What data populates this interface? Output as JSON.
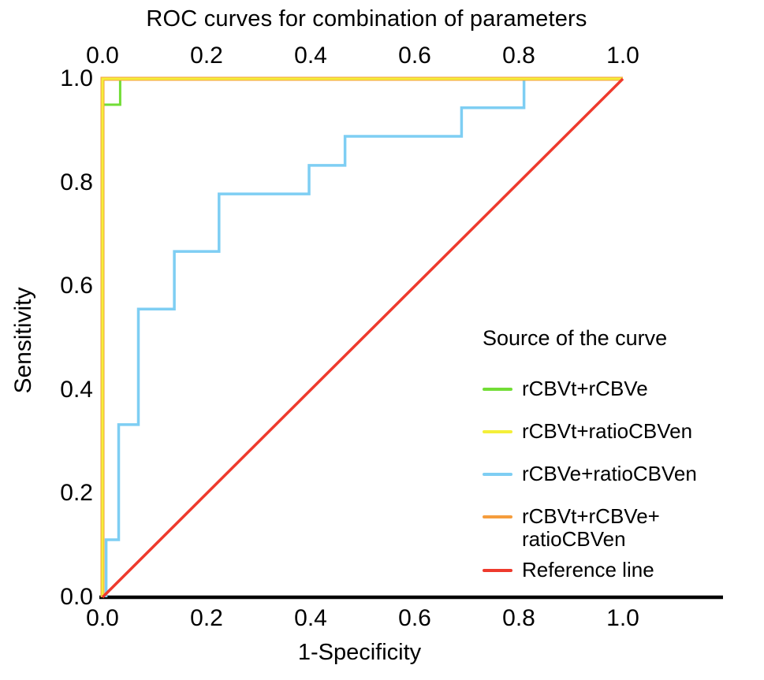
{
  "title": "ROC curves for combination of parameters",
  "axes": {
    "xlabel": "1-Specificity",
    "ylabel": "Sensitivity",
    "x_ticks": [
      "0.0",
      "0.2",
      "0.4",
      "0.6",
      "0.8",
      "1.0"
    ],
    "y_ticks": [
      "1.0",
      "0.8",
      "0.6",
      "0.4",
      "0.2",
      "0.0"
    ]
  },
  "legend": {
    "title": "Source of the curve",
    "entries": [
      {
        "label": "rCBVt+rCBVe",
        "color": "#72dd36"
      },
      {
        "label": "rCBVt+ratioCBVen",
        "color": "#f4ef39"
      },
      {
        "label": "rCBVe+ratioCBVen",
        "color": "#7ecef3"
      },
      {
        "label": "rCBVt+rCBVe+\nratioCBVen",
        "color": "#f59d3d"
      },
      {
        "label": "Reference line",
        "color": "#ee3a2d"
      }
    ]
  },
  "chart_data": {
    "type": "line",
    "title": "ROC curves for combination of parameters",
    "xlabel": "1-Specificity",
    "ylabel": "Sensitivity",
    "xlim": [
      0,
      1
    ],
    "ylim": [
      0,
      1
    ],
    "grid": false,
    "legend_position": "right",
    "series": [
      {
        "name": "rCBVt+rCBVe",
        "color": "#72dd36",
        "width": 3,
        "points": [
          [
            0,
            0
          ],
          [
            0,
            0.95
          ],
          [
            0.034,
            0.95
          ],
          [
            0.034,
            1
          ],
          [
            1,
            1
          ]
        ]
      },
      {
        "name": "rCBVe+ratioCBVen",
        "color": "#7ecef3",
        "width": 3.5,
        "points": [
          [
            0.007,
            0
          ],
          [
            0.007,
            0.111
          ],
          [
            0.031,
            0.111
          ],
          [
            0.031,
            0.333
          ],
          [
            0.069,
            0.333
          ],
          [
            0.069,
            0.556
          ],
          [
            0.138,
            0.556
          ],
          [
            0.138,
            0.667
          ],
          [
            0.224,
            0.667
          ],
          [
            0.224,
            0.778
          ],
          [
            0.397,
            0.778
          ],
          [
            0.397,
            0.833
          ],
          [
            0.466,
            0.833
          ],
          [
            0.466,
            0.889
          ],
          [
            0.69,
            0.889
          ],
          [
            0.69,
            0.944
          ],
          [
            0.81,
            0.944
          ],
          [
            0.81,
            1
          ],
          [
            1,
            1
          ]
        ]
      },
      {
        "name": "rCBVt+rCBVe+ratioCBVen",
        "color": "#f59d3d",
        "width": 5,
        "points": [
          [
            0,
            0
          ],
          [
            0,
            1
          ],
          [
            1,
            1
          ]
        ]
      },
      {
        "name": "rCBVt+ratioCBVen",
        "color": "#f4ef39",
        "width": 3,
        "points": [
          [
            0,
            0
          ],
          [
            0,
            1
          ],
          [
            1,
            1
          ]
        ]
      },
      {
        "name": "Reference line",
        "color": "#ee3a2d",
        "width": 3.5,
        "points": [
          [
            0,
            0
          ],
          [
            1,
            1
          ]
        ]
      }
    ]
  }
}
